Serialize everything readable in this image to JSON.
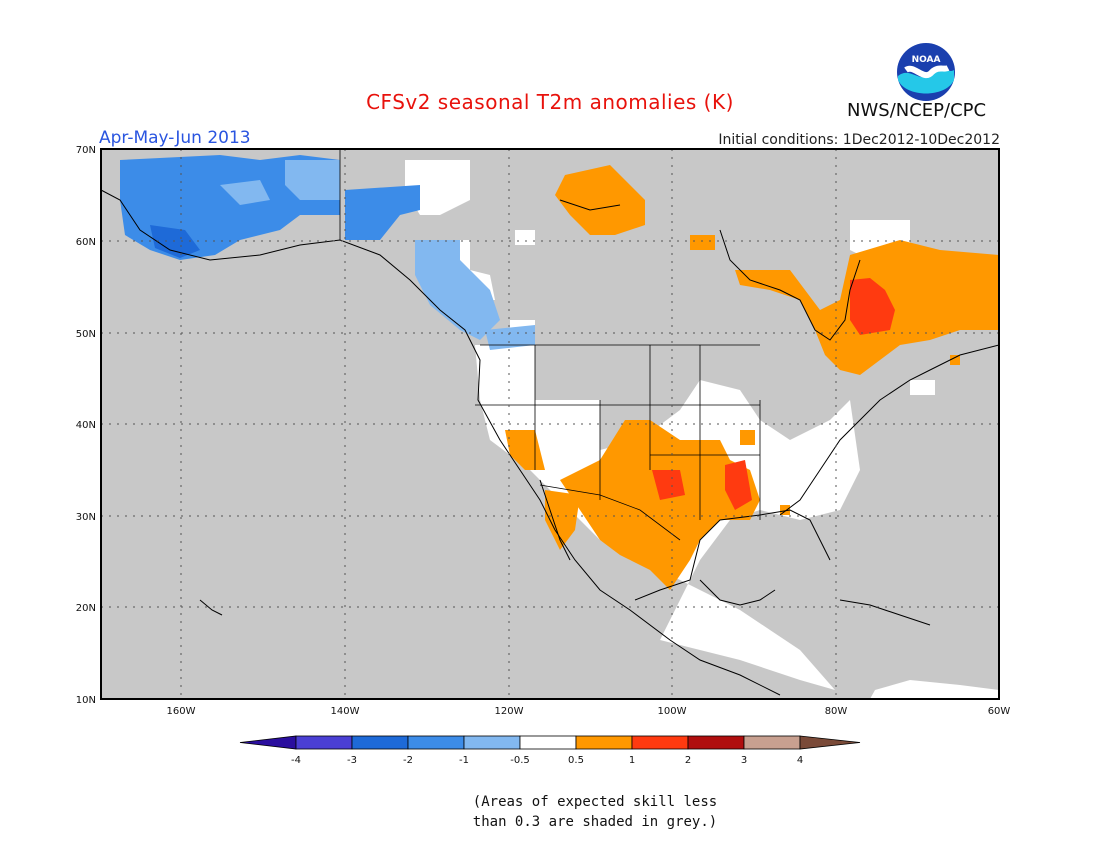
{
  "header": {
    "title": "CFSv2 seasonal T2m anomalies (K)",
    "season": "Apr-May-Jun 2013",
    "initial_conditions": "Initial conditions: 1Dec2012-10Dec2012",
    "agency": "NWS/NCEP/CPC",
    "logo_text": "NOAA"
  },
  "map": {
    "lat_labels": [
      "70N",
      "60N",
      "50N",
      "40N",
      "30N",
      "20N",
      "10N"
    ],
    "lon_labels": [
      "160W",
      "140W",
      "120W",
      "100W",
      "80W",
      "60W"
    ],
    "lat_range": [
      10,
      70
    ],
    "lon_range": [
      "170W",
      "60W"
    ],
    "grid": "dotted",
    "background_color": "#c8c8c8"
  },
  "colorbar": {
    "tick_labels": [
      "-4",
      "-3",
      "-2",
      "-1",
      "-0.5",
      "0.5",
      "1",
      "2",
      "3",
      "4"
    ],
    "colors": [
      "#2a0e9e",
      "#4a3fd4",
      "#1e6ad8",
      "#3c8ce8",
      "#82b8f0",
      "#ffffff",
      "#ff9800",
      "#ff3a10",
      "#b00e0e",
      "#c8a090",
      "#7a4a38"
    ]
  },
  "note": {
    "line1": "(Areas of expected skill less",
    "line2": "than 0.3 are shaded in grey.)"
  }
}
